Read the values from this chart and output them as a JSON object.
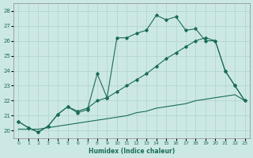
{
  "xlabel": "Humidex (Indice chaleur)",
  "bg_color": "#cce8e5",
  "grid_color": "#b0d0ce",
  "line_color": "#1a6b5a",
  "xlim": [
    -0.5,
    23.5
  ],
  "ylim": [
    19.5,
    28.5
  ],
  "yticks": [
    20,
    21,
    22,
    23,
    24,
    25,
    26,
    27,
    28
  ],
  "xticks": [
    0,
    1,
    2,
    3,
    4,
    5,
    6,
    7,
    8,
    9,
    10,
    11,
    12,
    13,
    14,
    15,
    16,
    17,
    18,
    19,
    20,
    21,
    22,
    23
  ],
  "series1_x": [
    0,
    1,
    2,
    3,
    4,
    5,
    6,
    7,
    8,
    9,
    10,
    11,
    12,
    13,
    14,
    15,
    16,
    17,
    18,
    19,
    20,
    21,
    22,
    23
  ],
  "series1_y": [
    20.6,
    20.2,
    19.9,
    20.3,
    21.1,
    21.6,
    21.2,
    21.4,
    23.8,
    22.2,
    26.2,
    26.2,
    26.5,
    26.7,
    27.7,
    27.4,
    27.6,
    26.7,
    26.8,
    26.0,
    26.0,
    24.0,
    23.0,
    22.0
  ],
  "series2_x": [
    0,
    1,
    2,
    3,
    4,
    5,
    6,
    7,
    8,
    9,
    10,
    11,
    12,
    13,
    14,
    15,
    16,
    17,
    18,
    19,
    20,
    21,
    22,
    23
  ],
  "series2_y": [
    20.1,
    20.1,
    20.1,
    20.2,
    20.3,
    20.4,
    20.5,
    20.6,
    20.7,
    20.8,
    20.9,
    21.0,
    21.2,
    21.3,
    21.5,
    21.6,
    21.7,
    21.8,
    22.0,
    22.1,
    22.2,
    22.3,
    22.4,
    22.0
  ],
  "series3_x": [
    0,
    1,
    2,
    3,
    4,
    5,
    6,
    7,
    8,
    9,
    10,
    11,
    12,
    13,
    14,
    15,
    16,
    17,
    18,
    19,
    20,
    21,
    22,
    23
  ],
  "series3_y": [
    20.6,
    20.2,
    19.9,
    20.3,
    21.1,
    21.6,
    21.3,
    21.5,
    22.0,
    22.2,
    22.6,
    23.0,
    23.4,
    23.8,
    24.3,
    24.8,
    25.2,
    25.6,
    26.0,
    26.2,
    26.0,
    24.0,
    23.0,
    22.0
  ]
}
